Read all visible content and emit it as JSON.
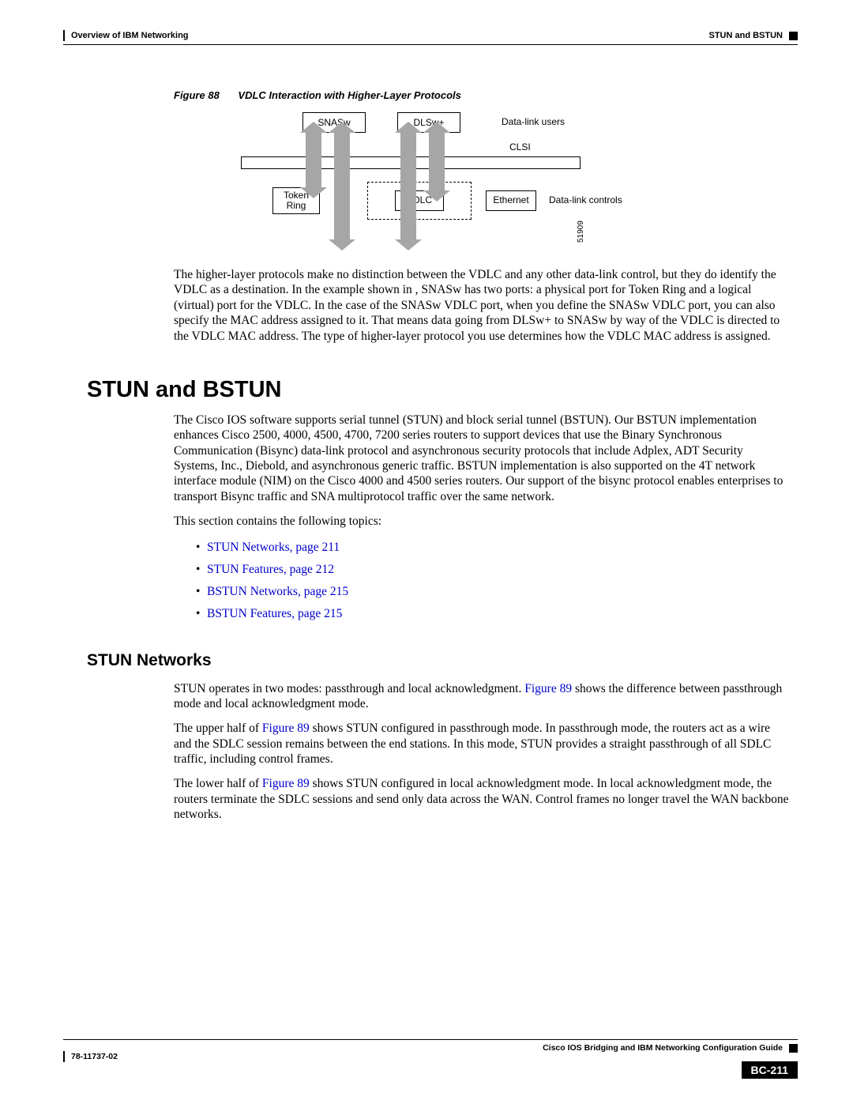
{
  "header": {
    "chapter": "Overview of IBM Networking",
    "section": "STUN and BSTUN"
  },
  "figure": {
    "label": "Figure 88",
    "title": "VDLC Interaction with Higher-Layer Protocols",
    "top_boxes": {
      "snasw": "SNASw",
      "dlsw": "DLSw+"
    },
    "labels": {
      "users": "Data-link users",
      "clsi": "CLSI",
      "controls": "Data-link controls"
    },
    "bottom_boxes": {
      "token1": "Token",
      "token2": "Ring",
      "vdlc": "VDLC",
      "eth": "Ethernet"
    },
    "side_num": "51909",
    "arrow_color": "#a6a6a6"
  },
  "para1": "The higher-layer protocols make no distinction between the VDLC and any other data-link control, but they do identify the VDLC as a destination. In the example shown in , SNASw has two ports: a physical port for Token Ring and a logical (virtual) port for the VDLC. In the case of the SNASw VDLC port, when you define the SNASw VDLC port, you can also specify the MAC address assigned to it. That means data going from DLSw+ to SNASw by way of the VDLC is directed to the VDLC MAC address. The type of higher-layer protocol you use determines how the VDLC MAC address is assigned.",
  "h1": "STUN and BSTUN",
  "para2": "The Cisco IOS software supports serial tunnel (STUN) and block serial tunnel (BSTUN). Our BSTUN implementation enhances Cisco 2500, 4000, 4500, 4700, 7200 series routers to support devices that use the Binary Synchronous Communication (Bisync) data-link protocol and asynchronous security protocols that include Adplex, ADT Security Systems, Inc., Diebold, and asynchronous generic traffic. BSTUN implementation is also supported on the 4T network interface module (NIM) on the Cisco 4000 and 4500 series routers. Our support of the bisync protocol enables enterprises to transport Bisync traffic and SNA multiprotocol traffic over the same network.",
  "para3": "This section contains the following topics:",
  "toc": [
    "STUN Networks, page 211",
    "STUN Features, page 212",
    "BSTUN Networks, page 215",
    "BSTUN Features, page 215"
  ],
  "h2": "STUN Networks",
  "para4a": "STUN operates in two modes: passthrough and local acknowledgment. ",
  "para4_link": "Figure 89",
  "para4b": " shows the difference between passthrough mode and local acknowledgment mode.",
  "para5a": "The upper half of ",
  "para5_link": "Figure 89",
  "para5b": " shows STUN configured in passthrough mode. In passthrough mode, the routers act as a wire and the SDLC session remains between the end stations. In this mode, STUN provides a straight passthrough of all SDLC traffic, including control frames.",
  "para6a": "The lower half of ",
  "para6_link": "Figure 89",
  "para6b": " shows STUN configured in local acknowledgment mode. In local acknowledgment mode, the routers terminate the SDLC sessions and send only data across the WAN. Control frames no longer travel the WAN backbone networks.",
  "footer": {
    "guide": "Cisco IOS Bridging and IBM Networking Configuration Guide",
    "docnum": "78-11737-02",
    "page": "BC-211"
  }
}
